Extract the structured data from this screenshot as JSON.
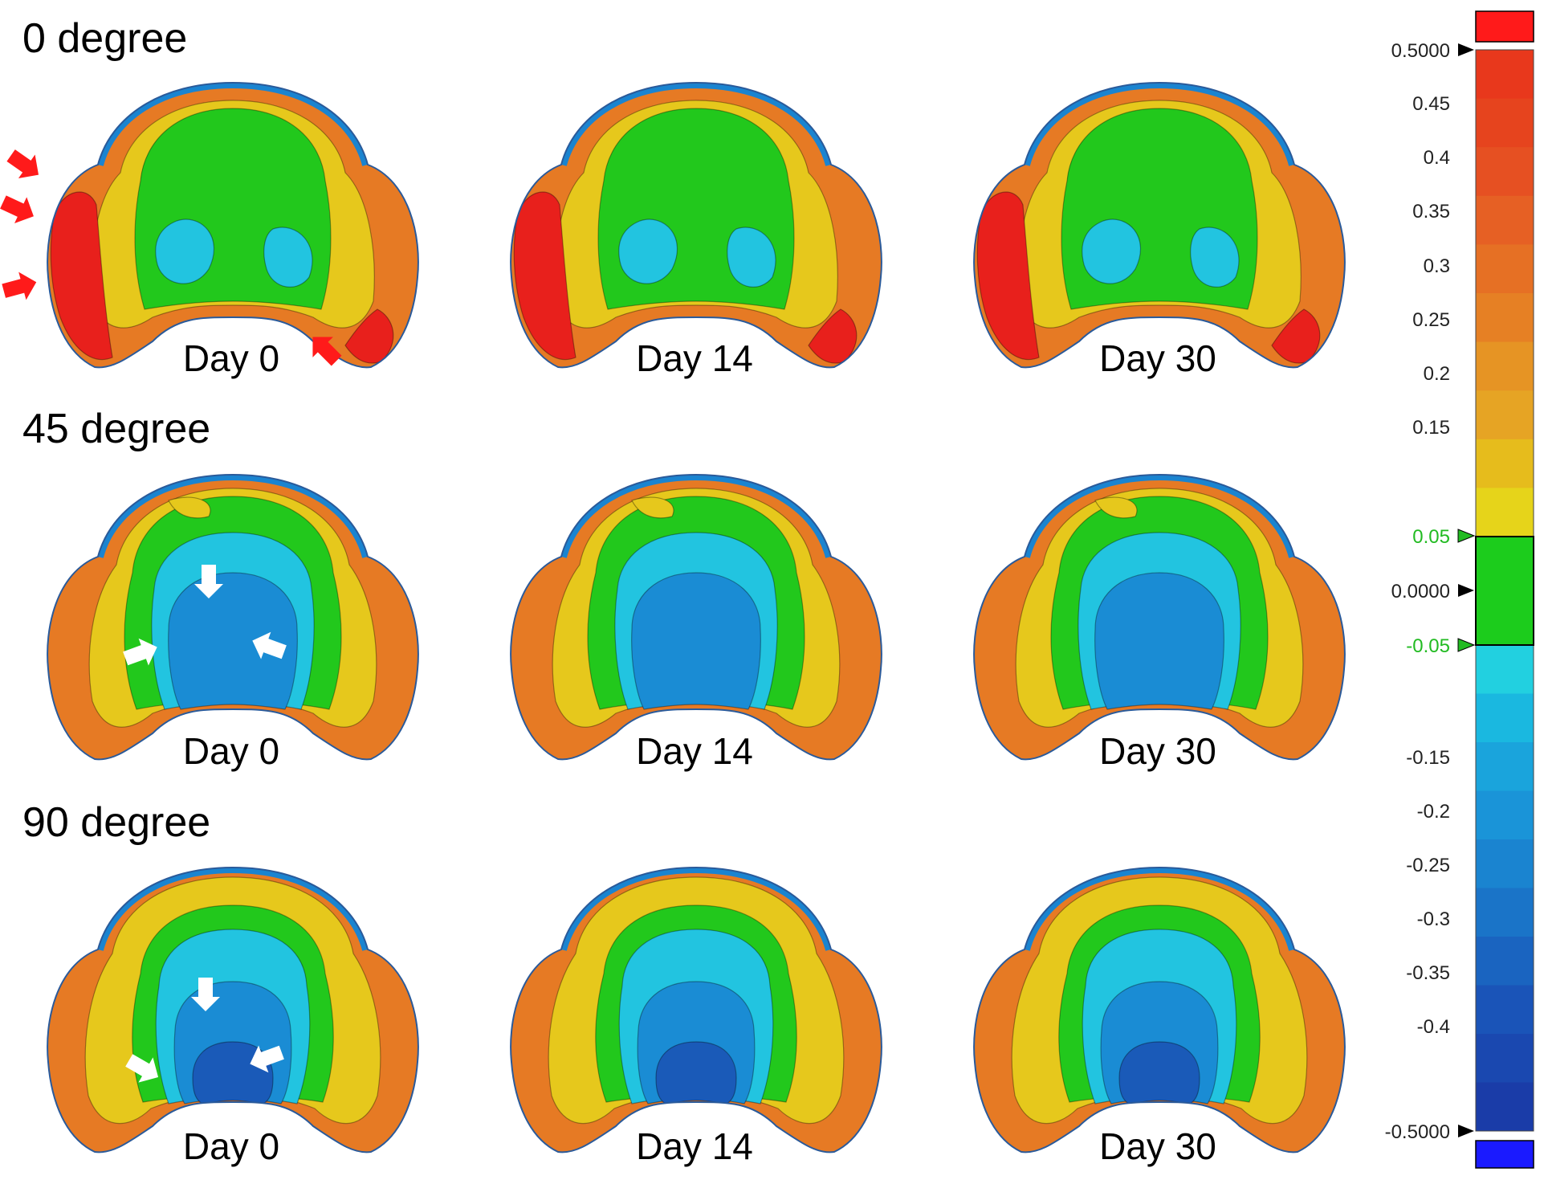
{
  "rows": [
    {
      "label": "0 degree",
      "days": [
        "Day 0",
        "Day 14",
        "Day 30"
      ]
    },
    {
      "label": "45 degree",
      "days": [
        "Day 0",
        "Day 14",
        "Day 30"
      ]
    },
    {
      "label": "90 degree",
      "days": [
        "Day 0",
        "Day 14",
        "Day 30"
      ]
    }
  ],
  "colorbar": {
    "max_label": "0.5000",
    "zero_label": "0.0000",
    "min_label": "-0.5000",
    "upper_tol_label": "0.05",
    "lower_tol_label": "-0.05",
    "tick_labels": [
      "0.45",
      "0.4",
      "0.35",
      "0.3",
      "0.25",
      "0.2",
      "0.15",
      "-0.15",
      "-0.2",
      "-0.25",
      "-0.3",
      "-0.35",
      "-0.4"
    ],
    "over_color": "#ff1a1a",
    "under_color": "#1a1aff",
    "tolerance_color": "#1ccc1c",
    "tol_label_color": "#22bb22",
    "bands_positive": [
      "#e8381c",
      "#e6441e",
      "#e65022",
      "#e66024",
      "#e67024",
      "#e68024",
      "#e69424",
      "#e6a424",
      "#e6bc1c",
      "#e6d41a"
    ],
    "bands_negative": [
      "#22d0e0",
      "#1ab8e0",
      "#1aa4dc",
      "#1a94d8",
      "#1a84d0",
      "#1a74c8",
      "#1a64c0",
      "#1a54b8",
      "#1a48b0",
      "#1a3ca8"
    ]
  },
  "panel_colors": {
    "rim_red": "#e8201c",
    "orange": "#e67a24",
    "yellow": "#e6c81c",
    "green": "#22c81c",
    "cyan": "#22c4e0",
    "blue": "#1a8cd4",
    "deep_blue": "#1a5ab8"
  },
  "arrows": {
    "red": "#ff1a1a",
    "white": "#ffffff"
  }
}
